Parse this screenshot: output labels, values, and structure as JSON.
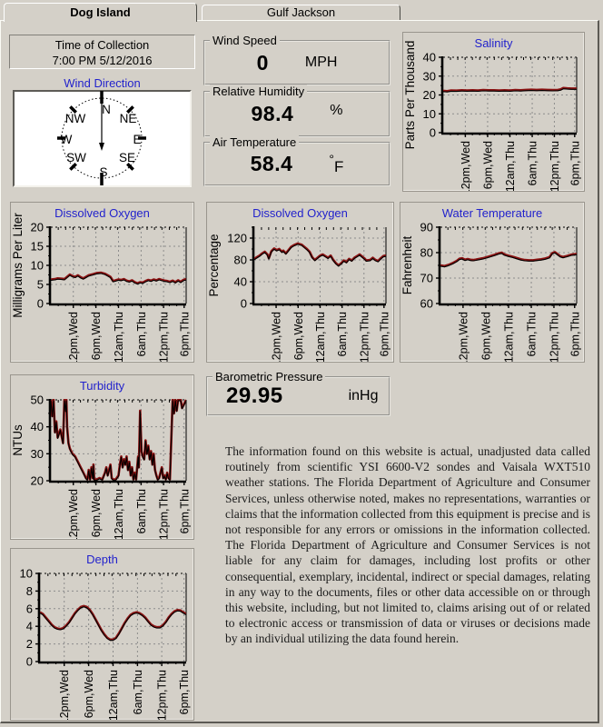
{
  "tabs": {
    "active": "Dog Island",
    "inactive": "Gulf Jackson"
  },
  "collection": {
    "label": "Time of Collection",
    "value": "7:00 PM 5/12/2016"
  },
  "wind_direction": {
    "title": "Wind Direction",
    "labels": [
      "N",
      "NE",
      "E",
      "SE",
      "S",
      "SW",
      "W",
      "NW"
    ]
  },
  "readouts": {
    "wind_speed": {
      "label": "Wind Speed",
      "value": "0",
      "unit": "MPH"
    },
    "humidity": {
      "label": "Relative Humidity",
      "value": "98.4",
      "unit": "%"
    },
    "air_temp": {
      "label": "Air Temperature",
      "value": "58.4",
      "unit_degree": "°",
      "unit_letter": "F"
    },
    "pressure": {
      "label": "Barometric Pressure",
      "value": "29.95",
      "unit": "inHg"
    }
  },
  "colors": {
    "background": "#d4d0c8",
    "title_blue": "#2222cc",
    "line_red": "#8b1212",
    "line_black": "#000000",
    "grid_gray": "#8c8c8c"
  },
  "disclaimer": "The information found on this website is actual, unadjusted data called routinely from scientific YSI 6600-V2 sondes and Vaisala WXT510 weather stations.  The Florida Department of Agriculture and Consumer Services, unless otherwise noted, makes no representations, warranties or claims that the information collected from this equipment is precise and is not responsible for any errors or omissions in the information collected.  The Florida Department of Agriculture and Consumer Services is not liable for any claim for damages, including lost profits or other consequential, exemplary, incidental, indirect or special damages, relating in any way to the documents, files or other data accessible on or through this website, including, but not limited to, claims arising out of or related to electronic access or transmission of data or viruses or decisions made by an individual utilizing the data found herein.",
  "chart_data": [
    {
      "key": "salinity",
      "type": "line",
      "title": "Salinity",
      "ylabel": "Parts Per Thousand",
      "ymin": 0,
      "ymax": 40,
      "yticks": [
        0,
        10,
        20,
        30,
        40
      ],
      "xlabels": [
        "12pm,Wed",
        "6pm,Wed",
        "12am,Thu",
        "6am,Thu",
        "12pm,Thu",
        "6pm,Thu"
      ],
      "points": [
        [
          0,
          22.2
        ],
        [
          0.03,
          22.0
        ],
        [
          0.06,
          22.4
        ],
        [
          0.1,
          22.3
        ],
        [
          0.14,
          22.5
        ],
        [
          0.18,
          22.4
        ],
        [
          0.22,
          22.5
        ],
        [
          0.26,
          22.4
        ],
        [
          0.3,
          22.6
        ],
        [
          0.34,
          22.5
        ],
        [
          0.38,
          22.5
        ],
        [
          0.42,
          22.4
        ],
        [
          0.46,
          22.5
        ],
        [
          0.5,
          22.4
        ],
        [
          0.54,
          22.6
        ],
        [
          0.58,
          22.5
        ],
        [
          0.62,
          22.7
        ],
        [
          0.66,
          22.8
        ],
        [
          0.7,
          22.7
        ],
        [
          0.74,
          22.8
        ],
        [
          0.78,
          22.7
        ],
        [
          0.82,
          22.6
        ],
        [
          0.86,
          22.7
        ],
        [
          0.88,
          23.0
        ],
        [
          0.9,
          23.7
        ],
        [
          0.93,
          23.5
        ],
        [
          0.96,
          23.4
        ],
        [
          1,
          23.4
        ]
      ]
    },
    {
      "key": "do_mg",
      "type": "line",
      "title": "Dissolved Oxygen",
      "ylabel": "Milligrams Per Liter",
      "ymin": 0,
      "ymax": 20,
      "yticks": [
        0,
        5,
        10,
        15,
        20
      ],
      "xlabels": [
        "12pm,Wed",
        "6pm,Wed",
        "12am,Thu",
        "6am,Thu",
        "12pm,Thu",
        "6pm,Thu"
      ],
      "points": [
        [
          0,
          6.3
        ],
        [
          0.03,
          6.4
        ],
        [
          0.05,
          6.6
        ],
        [
          0.08,
          6.5
        ],
        [
          0.1,
          6.4
        ],
        [
          0.12,
          7.0
        ],
        [
          0.14,
          7.6
        ],
        [
          0.16,
          7.2
        ],
        [
          0.18,
          7.0
        ],
        [
          0.2,
          7.4
        ],
        [
          0.22,
          6.9
        ],
        [
          0.24,
          6.6
        ],
        [
          0.26,
          7.0
        ],
        [
          0.28,
          7.4
        ],
        [
          0.31,
          7.7
        ],
        [
          0.34,
          8.0
        ],
        [
          0.37,
          8.1
        ],
        [
          0.4,
          7.8
        ],
        [
          0.42,
          7.4
        ],
        [
          0.44,
          7.0
        ],
        [
          0.46,
          5.9
        ],
        [
          0.48,
          6.1
        ],
        [
          0.5,
          6.3
        ],
        [
          0.52,
          6.2
        ],
        [
          0.54,
          6.4
        ],
        [
          0.56,
          6.0
        ],
        [
          0.58,
          5.8
        ],
        [
          0.6,
          6.1
        ],
        [
          0.62,
          5.6
        ],
        [
          0.64,
          5.3
        ],
        [
          0.66,
          5.6
        ],
        [
          0.68,
          5.5
        ],
        [
          0.7,
          5.9
        ],
        [
          0.72,
          6.2
        ],
        [
          0.74,
          6.0
        ],
        [
          0.76,
          6.3
        ],
        [
          0.78,
          6.1
        ],
        [
          0.8,
          6.4
        ],
        [
          0.82,
          6.2
        ],
        [
          0.84,
          6.0
        ],
        [
          0.86,
          5.9
        ],
        [
          0.88,
          5.7
        ],
        [
          0.9,
          6.0
        ],
        [
          0.92,
          5.6
        ],
        [
          0.94,
          6.1
        ],
        [
          0.96,
          5.7
        ],
        [
          0.98,
          6.2
        ],
        [
          1,
          6.4
        ]
      ]
    },
    {
      "key": "do_pct",
      "type": "line",
      "title": "Dissolved Oxygen",
      "ylabel": "Percentage",
      "ymin": 0,
      "ymax": 140,
      "yticks": [
        0,
        40,
        80,
        120
      ],
      "xlabels": [
        "12pm,Wed",
        "6pm,Wed",
        "12am,Thu",
        "6am,Thu",
        "12pm,Thu",
        "6pm,Thu"
      ],
      "points": [
        [
          0,
          82
        ],
        [
          0.02,
          85
        ],
        [
          0.04,
          88
        ],
        [
          0.06,
          92
        ],
        [
          0.08,
          95
        ],
        [
          0.1,
          90
        ],
        [
          0.11,
          83
        ],
        [
          0.13,
          96
        ],
        [
          0.15,
          101
        ],
        [
          0.17,
          98
        ],
        [
          0.19,
          100
        ],
        [
          0.21,
          95
        ],
        [
          0.22,
          97
        ],
        [
          0.24,
          92
        ],
        [
          0.26,
          98
        ],
        [
          0.28,
          104
        ],
        [
          0.3,
          107
        ],
        [
          0.33,
          110
        ],
        [
          0.36,
          108
        ],
        [
          0.38,
          104
        ],
        [
          0.4,
          100
        ],
        [
          0.42,
          95
        ],
        [
          0.44,
          85
        ],
        [
          0.46,
          80
        ],
        [
          0.48,
          84
        ],
        [
          0.5,
          88
        ],
        [
          0.52,
          90
        ],
        [
          0.54,
          87
        ],
        [
          0.56,
          84
        ],
        [
          0.58,
          88
        ],
        [
          0.6,
          80
        ],
        [
          0.62,
          74
        ],
        [
          0.64,
          70
        ],
        [
          0.66,
          74
        ],
        [
          0.68,
          79
        ],
        [
          0.7,
          76
        ],
        [
          0.72,
          82
        ],
        [
          0.74,
          79
        ],
        [
          0.76,
          84
        ],
        [
          0.78,
          87
        ],
        [
          0.8,
          90
        ],
        [
          0.82,
          86
        ],
        [
          0.84,
          82
        ],
        [
          0.85,
          79
        ],
        [
          0.88,
          80
        ],
        [
          0.9,
          84
        ],
        [
          0.92,
          80
        ],
        [
          0.94,
          78
        ],
        [
          0.96,
          83
        ],
        [
          0.98,
          87
        ],
        [
          1,
          88
        ]
      ]
    },
    {
      "key": "wtemp",
      "type": "line",
      "title": "Water Temperature",
      "ylabel": "Fahrenheit",
      "ymin": 60,
      "ymax": 90,
      "yticks": [
        60,
        70,
        80,
        90
      ],
      "xlabels": [
        "12pm,Wed",
        "6pm,Wed",
        "12am,Thu",
        "6am,Thu",
        "12pm,Thu",
        "6pm,Thu"
      ],
      "points": [
        [
          0,
          75.0
        ],
        [
          0.03,
          74.7
        ],
        [
          0.06,
          75.2
        ],
        [
          0.09,
          75.9
        ],
        [
          0.12,
          76.8
        ],
        [
          0.14,
          77.6
        ],
        [
          0.16,
          77.8
        ],
        [
          0.18,
          77.2
        ],
        [
          0.2,
          77.5
        ],
        [
          0.22,
          77.2
        ],
        [
          0.24,
          77.1
        ],
        [
          0.26,
          77.3
        ],
        [
          0.28,
          77.5
        ],
        [
          0.31,
          77.8
        ],
        [
          0.34,
          78.2
        ],
        [
          0.37,
          78.7
        ],
        [
          0.4,
          79.2
        ],
        [
          0.43,
          79.8
        ],
        [
          0.45,
          80.0
        ],
        [
          0.47,
          79.3
        ],
        [
          0.5,
          78.8
        ],
        [
          0.53,
          78.4
        ],
        [
          0.56,
          77.9
        ],
        [
          0.59,
          77.4
        ],
        [
          0.62,
          77.1
        ],
        [
          0.65,
          77.0
        ],
        [
          0.68,
          77.0
        ],
        [
          0.71,
          77.2
        ],
        [
          0.74,
          77.4
        ],
        [
          0.77,
          77.7
        ],
        [
          0.8,
          78.2
        ],
        [
          0.82,
          79.8
        ],
        [
          0.84,
          80.2
        ],
        [
          0.86,
          79.4
        ],
        [
          0.88,
          78.6
        ],
        [
          0.9,
          78.3
        ],
        [
          0.93,
          78.7
        ],
        [
          0.96,
          79.2
        ],
        [
          1,
          79.5
        ]
      ]
    },
    {
      "key": "turbidity",
      "type": "line",
      "title": "Turbidity",
      "ylabel": "NTUs",
      "ymin": 20,
      "ymax": 50,
      "yticks": [
        20,
        30,
        40,
        50
      ],
      "xlabels": [
        "12pm,Wed",
        "6pm,Wed",
        "12am,Thu",
        "6am,Thu",
        "12pm,Thu",
        "6pm,Thu"
      ],
      "points": [
        [
          0,
          50
        ],
        [
          0.01,
          44
        ],
        [
          0.02,
          50
        ],
        [
          0.03,
          38
        ],
        [
          0.04,
          42
        ],
        [
          0.05,
          36
        ],
        [
          0.07,
          39
        ],
        [
          0.09,
          34
        ],
        [
          0.1,
          50
        ],
        [
          0.11,
          46
        ],
        [
          0.115,
          50
        ],
        [
          0.12,
          40
        ],
        [
          0.13,
          34
        ],
        [
          0.14,
          32
        ],
        [
          0.15,
          31
        ],
        [
          0.16,
          30
        ],
        [
          0.17,
          29.5
        ],
        [
          0.18,
          29
        ],
        [
          0.19,
          28
        ],
        [
          0.2,
          27
        ],
        [
          0.21,
          26
        ],
        [
          0.22,
          25
        ],
        [
          0.23,
          24
        ],
        [
          0.24,
          23
        ],
        [
          0.25,
          22
        ],
        [
          0.26,
          21
        ],
        [
          0.27,
          20.5
        ],
        [
          0.28,
          24
        ],
        [
          0.29,
          20.5
        ],
        [
          0.3,
          25
        ],
        [
          0.31,
          21
        ],
        [
          0.315,
          26
        ],
        [
          0.32,
          20.5
        ],
        [
          0.34,
          20.5
        ],
        [
          0.36,
          21
        ],
        [
          0.38,
          20.5
        ],
        [
          0.4,
          23
        ],
        [
          0.41,
          25
        ],
        [
          0.42,
          22
        ],
        [
          0.43,
          24
        ],
        [
          0.44,
          26
        ],
        [
          0.45,
          21
        ],
        [
          0.46,
          20.5
        ],
        [
          0.48,
          20.5
        ],
        [
          0.5,
          22
        ],
        [
          0.51,
          26
        ],
        [
          0.52,
          29
        ],
        [
          0.53,
          25
        ],
        [
          0.54,
          28
        ],
        [
          0.55,
          26
        ],
        [
          0.56,
          29
        ],
        [
          0.57,
          24
        ],
        [
          0.58,
          27
        ],
        [
          0.59,
          22
        ],
        [
          0.6,
          25
        ],
        [
          0.61,
          20.5
        ],
        [
          0.62,
          23
        ],
        [
          0.63,
          20.5
        ],
        [
          0.645,
          29
        ],
        [
          0.65,
          25
        ],
        [
          0.66,
          46
        ],
        [
          0.67,
          31
        ],
        [
          0.68,
          29
        ],
        [
          0.69,
          28
        ],
        [
          0.7,
          35
        ],
        [
          0.71,
          30
        ],
        [
          0.72,
          33
        ],
        [
          0.73,
          28
        ],
        [
          0.74,
          31
        ],
        [
          0.75,
          26
        ],
        [
          0.76,
          30
        ],
        [
          0.77,
          24
        ],
        [
          0.78,
          22
        ],
        [
          0.79,
          20.5
        ],
        [
          0.8,
          21
        ],
        [
          0.81,
          23
        ],
        [
          0.82,
          25
        ],
        [
          0.83,
          21
        ],
        [
          0.84,
          22
        ],
        [
          0.85,
          20.5
        ],
        [
          0.86,
          23
        ],
        [
          0.87,
          21
        ],
        [
          0.88,
          20.5
        ],
        [
          0.9,
          50
        ],
        [
          0.91,
          45
        ],
        [
          0.92,
          50
        ],
        [
          0.93,
          46
        ],
        [
          0.94,
          50
        ],
        [
          0.96,
          50
        ],
        [
          0.97,
          47
        ],
        [
          1,
          50
        ]
      ]
    },
    {
      "key": "depth",
      "type": "line",
      "title": "Depth",
      "ylabel": "",
      "ymin": 0,
      "ymax": 10,
      "yticks": [
        0,
        2,
        4,
        6,
        8,
        10
      ],
      "xlabels": [
        "12pm,Wed",
        "6pm,Wed",
        "12am,Thu",
        "6am,Thu",
        "12pm,Thu",
        "6pm,Thu"
      ],
      "points": [
        [
          0,
          5.6
        ],
        [
          0.02,
          5.4
        ],
        [
          0.04,
          5.0
        ],
        [
          0.06,
          4.6
        ],
        [
          0.08,
          4.2
        ],
        [
          0.1,
          3.9
        ],
        [
          0.12,
          3.75
        ],
        [
          0.14,
          3.7
        ],
        [
          0.16,
          3.8
        ],
        [
          0.18,
          4.1
        ],
        [
          0.2,
          4.5
        ],
        [
          0.22,
          5.0
        ],
        [
          0.24,
          5.5
        ],
        [
          0.26,
          5.9
        ],
        [
          0.28,
          6.2
        ],
        [
          0.3,
          6.3
        ],
        [
          0.32,
          6.2
        ],
        [
          0.34,
          5.9
        ],
        [
          0.36,
          5.4
        ],
        [
          0.38,
          4.8
        ],
        [
          0.4,
          4.2
        ],
        [
          0.42,
          3.6
        ],
        [
          0.44,
          3.1
        ],
        [
          0.46,
          2.7
        ],
        [
          0.48,
          2.5
        ],
        [
          0.5,
          2.5
        ],
        [
          0.52,
          2.7
        ],
        [
          0.54,
          3.2
        ],
        [
          0.56,
          3.8
        ],
        [
          0.58,
          4.4
        ],
        [
          0.6,
          4.9
        ],
        [
          0.62,
          5.3
        ],
        [
          0.64,
          5.5
        ],
        [
          0.66,
          5.6
        ],
        [
          0.68,
          5.5
        ],
        [
          0.7,
          5.3
        ],
        [
          0.72,
          5.0
        ],
        [
          0.74,
          4.6
        ],
        [
          0.76,
          4.2
        ],
        [
          0.78,
          4.0
        ],
        [
          0.8,
          3.9
        ],
        [
          0.82,
          3.9
        ],
        [
          0.84,
          4.1
        ],
        [
          0.86,
          4.5
        ],
        [
          0.88,
          5.0
        ],
        [
          0.9,
          5.4
        ],
        [
          0.92,
          5.7
        ],
        [
          0.94,
          5.85
        ],
        [
          0.96,
          5.8
        ],
        [
          0.98,
          5.6
        ],
        [
          1,
          5.4
        ]
      ]
    }
  ]
}
